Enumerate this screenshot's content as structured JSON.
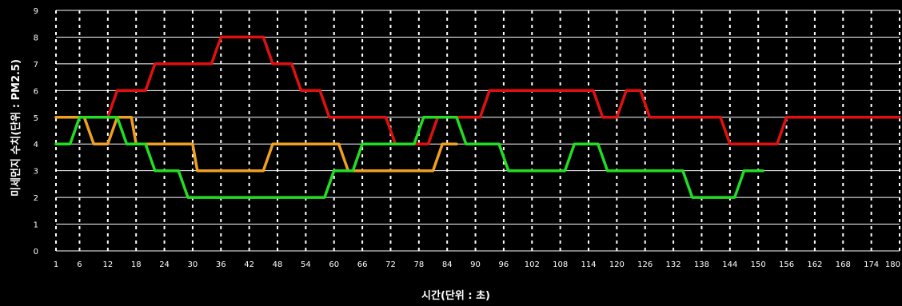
{
  "chart_data": {
    "type": "line",
    "title": "",
    "xlabel": "시간(단위 : 초)",
    "ylabel": "미세먼지 수치(단위 : PM2.5)",
    "xlim": [
      1,
      180
    ],
    "ylim": [
      0,
      9
    ],
    "x_ticks": [
      1,
      6,
      12,
      18,
      24,
      30,
      36,
      42,
      48,
      54,
      60,
      66,
      72,
      78,
      84,
      90,
      96,
      102,
      108,
      114,
      120,
      126,
      132,
      138,
      144,
      150,
      156,
      162,
      168,
      174,
      180
    ],
    "x_tick_labels": [
      "1",
      "6",
      "12",
      "18",
      "24",
      "30",
      "36",
      "42",
      "48",
      "54",
      "60",
      "66",
      "72",
      "78",
      "84",
      "90",
      "96",
      "102",
      "108",
      "114",
      "120",
      "126",
      "132",
      "138",
      "144",
      "150",
      "156",
      "162",
      "168",
      "174",
      "180"
    ],
    "y_ticks": [
      0,
      1,
      2,
      3,
      4,
      5,
      6,
      7,
      8,
      9
    ],
    "y_tick_labels": [
      "0",
      "1",
      "2",
      "3",
      "4",
      "5",
      "6",
      "7",
      "8",
      "9"
    ],
    "grid": "on",
    "colors": {
      "background": "#000000",
      "text": "#ffffff",
      "grid_h": "#ffffff",
      "grid_v": "#ffffff"
    },
    "series": [
      {
        "color": "#e01010",
        "points": [
          [
            1,
            5
          ],
          [
            12,
            5
          ],
          [
            14,
            6
          ],
          [
            20,
            6
          ],
          [
            22,
            7
          ],
          [
            34,
            7
          ],
          [
            36,
            8
          ],
          [
            45,
            8
          ],
          [
            47,
            7
          ],
          [
            51,
            7
          ],
          [
            53,
            6
          ],
          [
            57,
            6
          ],
          [
            59,
            5
          ],
          [
            71,
            5
          ],
          [
            73,
            4
          ],
          [
            80,
            4
          ],
          [
            82,
            5
          ],
          [
            91,
            5
          ],
          [
            93,
            6
          ],
          [
            115,
            6
          ],
          [
            117,
            5
          ],
          [
            120,
            5
          ],
          [
            122,
            6
          ],
          [
            125,
            6
          ],
          [
            127,
            5
          ],
          [
            142,
            5
          ],
          [
            144,
            4
          ],
          [
            154,
            4
          ],
          [
            156,
            5
          ],
          [
            180,
            5
          ]
        ]
      },
      {
        "color": "#f0a020",
        "points": [
          [
            1,
            5
          ],
          [
            7,
            5
          ],
          [
            9,
            4
          ],
          [
            12,
            4
          ],
          [
            14,
            5
          ],
          [
            17,
            5
          ],
          [
            18,
            4
          ],
          [
            30,
            4
          ],
          [
            31,
            3
          ],
          [
            45,
            3
          ],
          [
            47,
            4
          ],
          [
            61,
            4
          ],
          [
            63,
            3
          ],
          [
            81,
            3
          ],
          [
            83,
            4
          ],
          [
            86,
            4
          ]
        ]
      },
      {
        "color": "#22dd22",
        "points": [
          [
            1,
            4
          ],
          [
            4,
            4
          ],
          [
            6,
            5
          ],
          [
            14,
            5
          ],
          [
            16,
            4
          ],
          [
            20,
            4
          ],
          [
            22,
            3
          ],
          [
            27,
            3
          ],
          [
            29,
            2
          ],
          [
            58,
            2
          ],
          [
            60,
            3
          ],
          [
            64,
            3
          ],
          [
            66,
            4
          ],
          [
            77,
            4
          ],
          [
            79,
            5
          ],
          [
            86,
            5
          ],
          [
            88,
            4
          ],
          [
            95,
            4
          ],
          [
            97,
            3
          ],
          [
            109,
            3
          ],
          [
            111,
            4
          ],
          [
            116,
            4
          ],
          [
            118,
            3
          ],
          [
            134,
            3
          ],
          [
            136,
            2
          ],
          [
            145,
            2
          ],
          [
            147,
            3
          ],
          [
            151,
            3
          ]
        ]
      }
    ]
  }
}
